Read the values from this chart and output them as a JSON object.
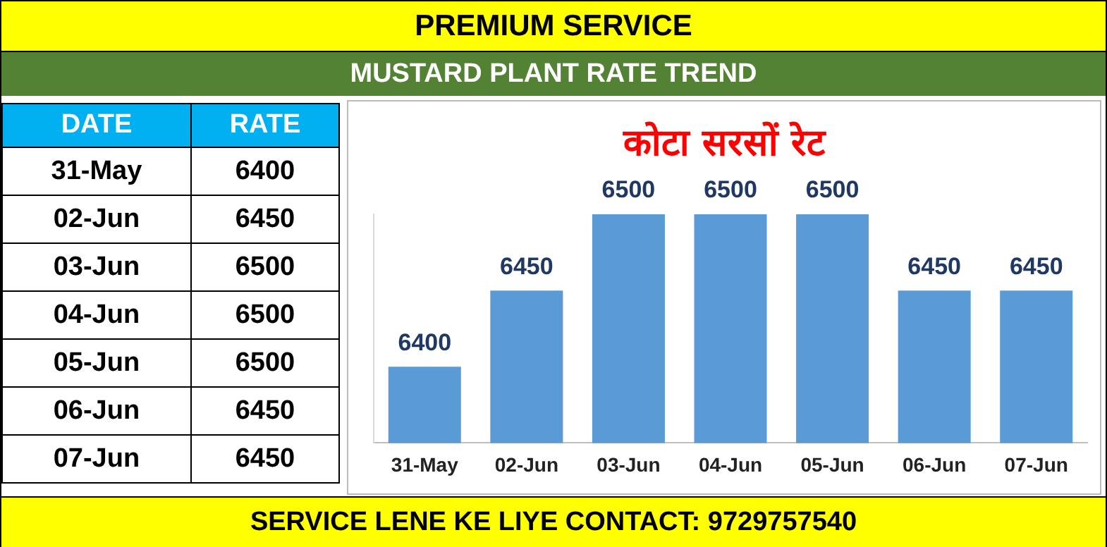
{
  "chart_data": [
    {
      "type": "other",
      "title": "PREMIUM SERVICE",
      "subtitle": "MUSTARD PLANT RATE TREND",
      "annotations": [
        "DATE",
        "RATE"
      ],
      "categories": [
        "31-May",
        "02-Jun",
        "03-Jun",
        "04-Jun",
        "05-Jun",
        "06-Jun",
        "07-Jun"
      ],
      "values": [
        6400,
        6450,
        6500,
        6500,
        6500,
        6450,
        6450
      ],
      "value_labels": [
        "6400",
        "6450",
        "6500",
        "6500",
        "6500",
        "6450",
        "6450"
      ]
    },
    {
      "type": "bar",
      "title": "कोटा सरसों रेट",
      "annotations": [
        "SERVICE LENE KE LIYE CONTACT: 9729757540"
      ],
      "categories": [
        "31-May",
        "02-Jun",
        "03-Jun",
        "04-Jun",
        "05-Jun",
        "06-Jun",
        "07-Jun"
      ],
      "values": [
        6400,
        6450,
        6500,
        6500,
        6500,
        6450,
        6450
      ],
      "color": "#5b9bd5",
      "ylim": [
        6350,
        6500
      ],
      "tick_labels": "x",
      "data_labels": true
    }
  ]
}
